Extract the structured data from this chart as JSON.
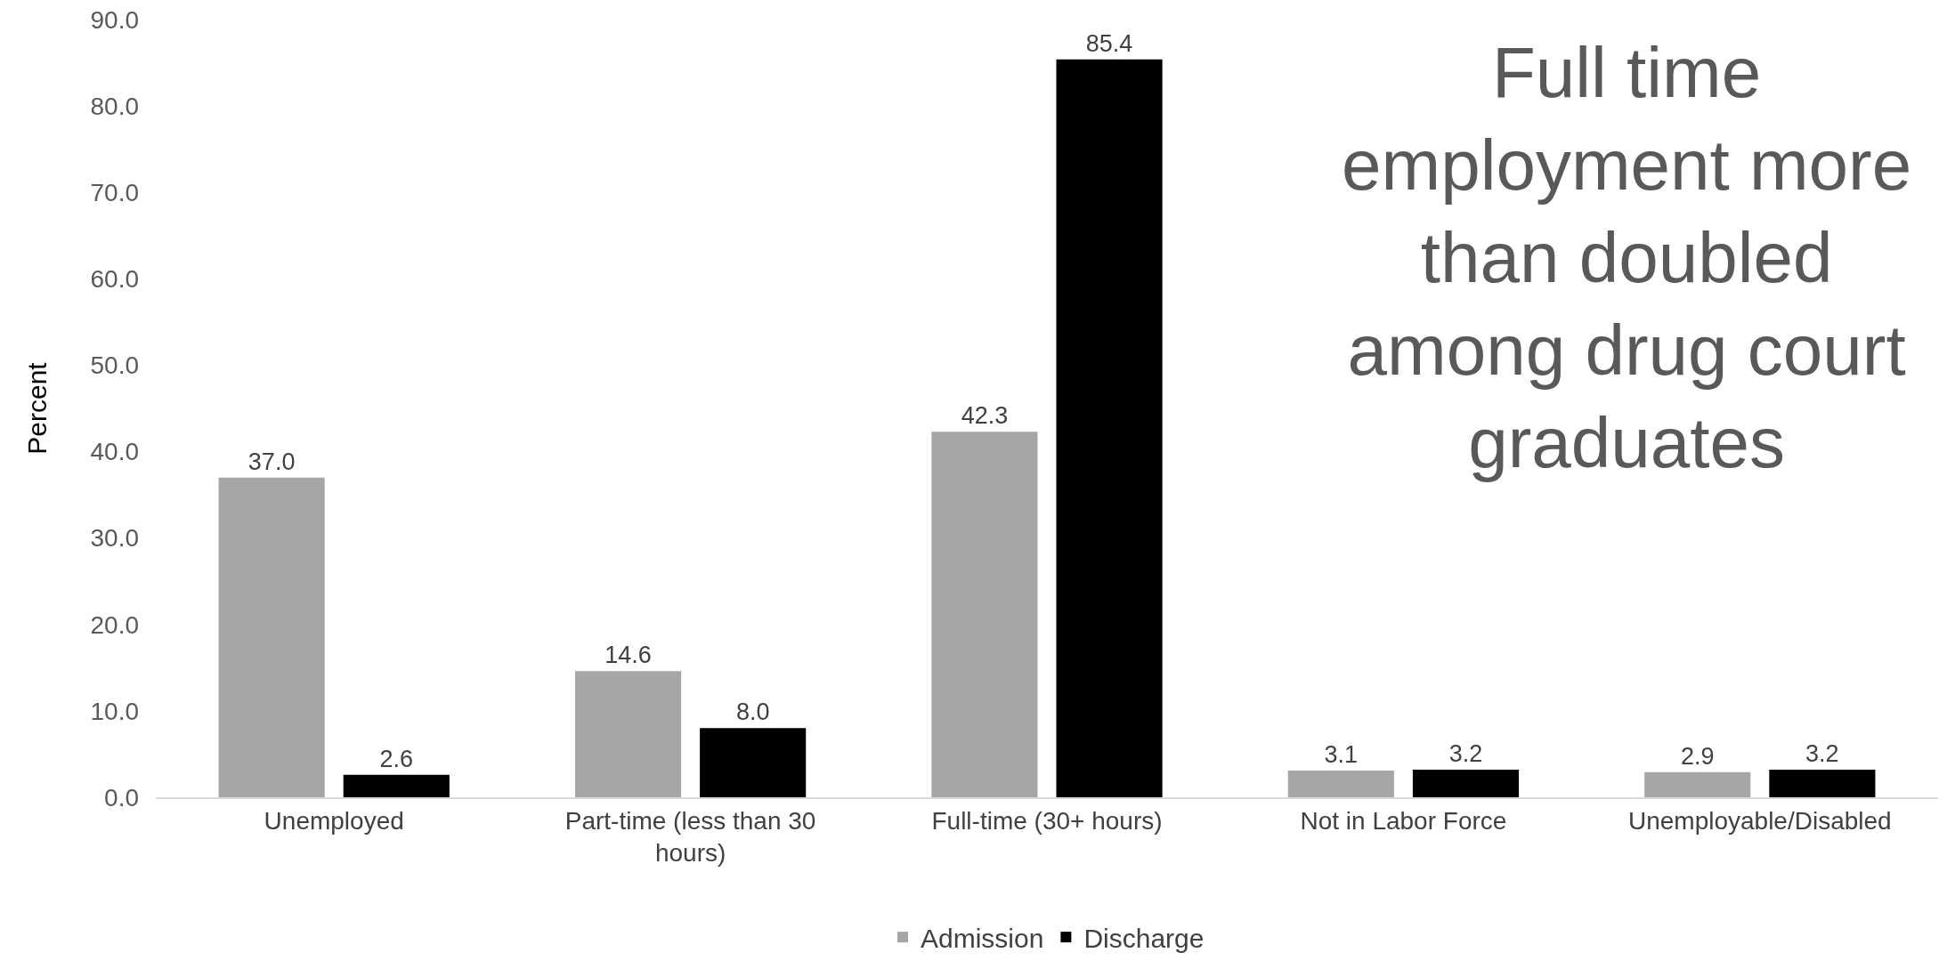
{
  "chart_data": {
    "type": "bar",
    "ylabel": "Percent",
    "categories": [
      "Unemployed",
      "Part-time (less than 30 hours)",
      "Full-time (30+ hours)",
      "Not in Labor Force",
      "Unemployable/Disabled"
    ],
    "series": [
      {
        "name": "Admission",
        "color": "#a6a6a6",
        "values": [
          37.0,
          14.6,
          42.3,
          3.1,
          2.9
        ],
        "value_labels": [
          "37.0",
          "14.6",
          "42.3",
          "3.1",
          "2.9"
        ]
      },
      {
        "name": "Discharge",
        "color": "#000000",
        "values": [
          2.6,
          8.0,
          85.4,
          3.2,
          3.2
        ],
        "value_labels": [
          "2.6",
          "8.0",
          "85.4",
          "3.2",
          "3.2"
        ]
      }
    ],
    "ylim": [
      0,
      90
    ],
    "yticks": [
      {
        "value": 0,
        "label": "0.0"
      },
      {
        "value": 10,
        "label": "10.0"
      },
      {
        "value": 20,
        "label": "20.0"
      },
      {
        "value": 30,
        "label": "30.0"
      },
      {
        "value": 40,
        "label": "40.0"
      },
      {
        "value": 50,
        "label": "50.0"
      },
      {
        "value": 60,
        "label": "60.0"
      },
      {
        "value": 70,
        "label": "70.0"
      },
      {
        "value": 80,
        "label": "80.0"
      },
      {
        "value": 90,
        "label": "90.0"
      }
    ],
    "grid": false,
    "legend": "bottom",
    "annotations": [
      "Full time employment more than doubled among drug court graduates"
    ]
  }
}
